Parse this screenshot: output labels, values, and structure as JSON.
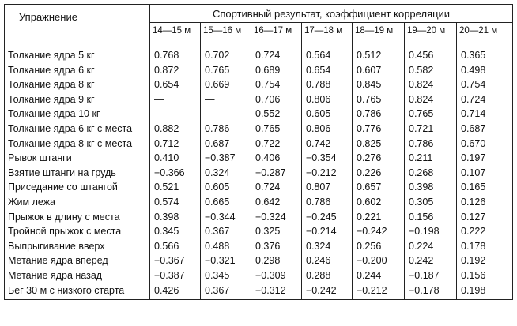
{
  "header": {
    "exercise": "Упражнение",
    "group": "Спортивный результат, коэффициент корреляции",
    "ages": [
      "14—15 м",
      "15—16 м",
      "16—17 м",
      "17—18 м",
      "18—19 м",
      "19—20 м",
      "20—21 м"
    ]
  },
  "rows": [
    {
      "name": "Толкание ядра 5 кг",
      "values": [
        "0.768",
        "0.702",
        "0.724",
        "0.564",
        "0.512",
        "0.456",
        "0.365"
      ]
    },
    {
      "name": "Толкание ядра 6 кг",
      "values": [
        "0.872",
        "0.765",
        "0.689",
        "0.654",
        "0.607",
        "0.582",
        "0.498"
      ]
    },
    {
      "name": "Толкание ядра 8 кг",
      "values": [
        "0.654",
        "0.669",
        "0.754",
        "0.788",
        "0.845",
        "0.824",
        "0.754"
      ]
    },
    {
      "name": "Толкание ядра 9 кг",
      "values": [
        "—",
        "—",
        "0.706",
        "0.806",
        "0.765",
        "0.824",
        "0.724"
      ]
    },
    {
      "name": "Толкание ядра 10 кг",
      "values": [
        "—",
        "—",
        "0.552",
        "0.605",
        "0.786",
        "0.765",
        "0.714"
      ]
    },
    {
      "name": "Толкание ядра 6 кг с места",
      "values": [
        "0.882",
        "0.786",
        "0.765",
        "0.806",
        "0.776",
        "0.721",
        "0.687"
      ]
    },
    {
      "name": "Толкание ядра 8 кг с места",
      "values": [
        "0.712",
        "0.687",
        "0.722",
        "0.742",
        "0.825",
        "0.786",
        "0.670"
      ]
    },
    {
      "name": "Рывок штанги",
      "values": [
        "0.410",
        "−0.387",
        "0.406",
        "−0.354",
        "0.276",
        "0.211",
        "0.197"
      ]
    },
    {
      "name": "Взятие штанги на грудь",
      "values": [
        "−0.366",
        "0.324",
        "−0.287",
        "−0.212",
        "0.226",
        "0.268",
        "0.107"
      ]
    },
    {
      "name": "Приседание со штангой",
      "values": [
        "0.521",
        "0.605",
        "0.724",
        "0.807",
        "0.657",
        "0.398",
        "0.165"
      ]
    },
    {
      "name": "Жим лежа",
      "values": [
        "0.574",
        "0.665",
        "0.642",
        "0.786",
        "0.602",
        "0.305",
        "0.126"
      ]
    },
    {
      "name": "Прыжок в длину с места",
      "values": [
        "0.398",
        "−0.344",
        "−0.324",
        "−0.245",
        "0.221",
        "0.156",
        "0.127"
      ]
    },
    {
      "name": "Тройной прыжок с места",
      "values": [
        "0.345",
        "0.367",
        "0.325",
        "−0.214",
        "−0.242",
        "−0.198",
        "0.222"
      ]
    },
    {
      "name": "Выпрыгивание вверх",
      "values": [
        "0.566",
        "0.488",
        "0.376",
        "0.324",
        "0.256",
        "0.224",
        "0.178"
      ]
    },
    {
      "name": "Метание ядра вперед",
      "values": [
        "−0.367",
        "−0.321",
        "0.298",
        "0.246",
        "−0.200",
        "0.242",
        "0.192"
      ]
    },
    {
      "name": "Метание ядра назад",
      "values": [
        "−0.387",
        "0.345",
        "−0.309",
        "0.288",
        "0.244",
        "−0.187",
        "0.156"
      ]
    },
    {
      "name": "Бег 30 м с низкого старта",
      "values": [
        "0.426",
        "0.367",
        "−0.312",
        "−0.242",
        "−0.212",
        "−0.178",
        "0.198"
      ]
    }
  ]
}
